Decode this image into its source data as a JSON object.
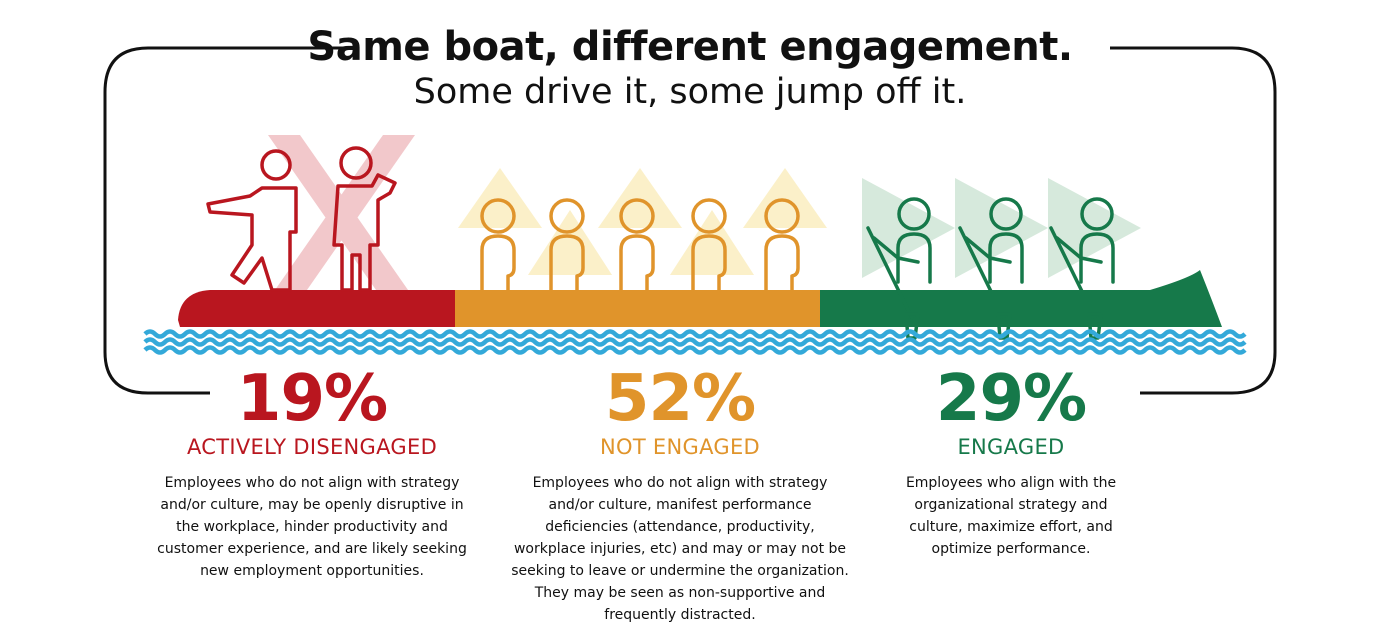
{
  "header": {
    "title": "Same boat, different engagement.",
    "subtitle": "Some drive it, some jump off it."
  },
  "colors": {
    "red": "#b9161f",
    "orange": "#e0942b",
    "green": "#16794a",
    "water": "#33a9d9"
  },
  "segments": [
    {
      "percent": "19%",
      "label": "ACTIVELY DISENGAGED",
      "desc_lines": [
        "Employees who do not align with strategy",
        "and/or culture, may be openly disruptive in",
        "the workplace, hinder productivity and",
        "customer experience, and are likely seeking",
        "new employment opportunities."
      ]
    },
    {
      "percent": "52%",
      "label": "NOT ENGAGED",
      "desc_lines": [
        "Employees who do not align with strategy",
        "and/or culture, manifest performance",
        "deficiencies (attendance, productivity,",
        "workplace injuries, etc) and may or may not be",
        "seeking to leave or undermine the organization.",
        "They may be seen as non-supportive and",
        "frequently distracted."
      ]
    },
    {
      "percent": "29%",
      "label": "ENGAGED",
      "desc_lines": [
        "Employees who align with the",
        "organizational strategy and",
        "culture, maximize effort, and",
        "optimize performance."
      ]
    }
  ]
}
